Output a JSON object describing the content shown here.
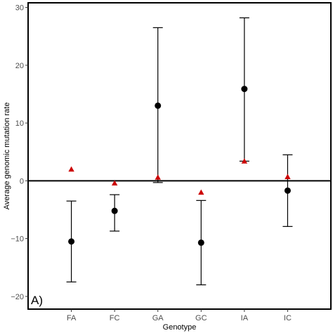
{
  "chart_data": {
    "type": "scatter",
    "panel_label": "A)",
    "xlabel": "Genotype",
    "ylabel": "Average genomic mutation rate",
    "categories": [
      "FA",
      "FC",
      "GA",
      "GC",
      "IA",
      "IC"
    ],
    "ylim": [
      -22.2,
      30.8
    ],
    "yticks": [
      -20,
      -10,
      0,
      10,
      20,
      30
    ],
    "zero_line": 0,
    "grid": false,
    "series": [
      {
        "marker": "circle",
        "color": "#000000",
        "values": [
          -10.5,
          -5.2,
          13.0,
          -10.7,
          15.9,
          -1.7
        ],
        "error_low": [
          -17.5,
          -8.7,
          -0.3,
          -18.0,
          3.4,
          -7.9
        ],
        "error_high": [
          -3.5,
          -2.4,
          26.5,
          -3.4,
          28.2,
          4.5
        ]
      },
      {
        "marker": "triangle",
        "color": "#cc0000",
        "values": [
          2.0,
          -0.4,
          0.6,
          -2.0,
          3.4,
          0.7
        ]
      }
    ]
  }
}
